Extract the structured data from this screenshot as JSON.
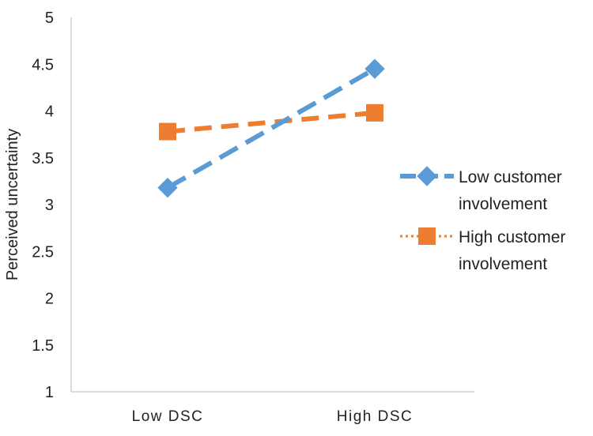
{
  "chart_data": {
    "type": "line",
    "title": "",
    "xlabel": "",
    "ylabel": "Perceived uncertainty",
    "categories": [
      "Low DSC",
      "High DSC"
    ],
    "ylim": [
      1,
      5
    ],
    "yticks": [
      "1",
      "1.5",
      "2",
      "2.5",
      "3",
      "3.5",
      "4",
      "4.5",
      "5"
    ],
    "grid": false,
    "legend_position": "right",
    "series": [
      {
        "name_lines": [
          "Low customer",
          "involvement"
        ],
        "values": [
          3.18,
          4.45
        ],
        "color": "#5b9bd5",
        "line_style": "long-dash",
        "marker": "diamond"
      },
      {
        "name_lines": [
          "High customer",
          "involvement"
        ],
        "values": [
          3.78,
          3.98
        ],
        "color": "#ed7d31",
        "line_style": "short-dash",
        "legend_line_style": "dotted",
        "marker": "square"
      }
    ]
  }
}
